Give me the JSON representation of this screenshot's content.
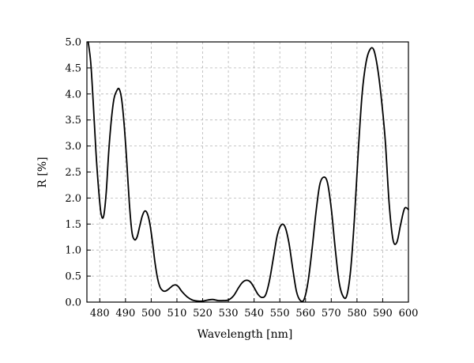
{
  "chart_data": {
    "type": "line",
    "xlabel": "Wavelength [nm]",
    "ylabel": "R [%]",
    "xlim": [
      475,
      600
    ],
    "ylim": [
      0,
      5.0
    ],
    "x_ticks": [
      480,
      490,
      500,
      510,
      520,
      530,
      540,
      550,
      560,
      570,
      580,
      590,
      600
    ],
    "x_tick_labels": [
      "480",
      "490",
      "500",
      "510",
      "520",
      "530",
      "540",
      "550",
      "560",
      "570",
      "580",
      "590",
      "600"
    ],
    "y_ticks": [
      0,
      0.5,
      1.0,
      1.5,
      2.0,
      2.5,
      3.0,
      3.5,
      4.0,
      4.5,
      5.0
    ],
    "y_tick_labels": [
      "0.0",
      "0.5",
      "1.0",
      "1.5",
      "2.0",
      "2.5",
      "3.0",
      "3.5",
      "4.0",
      "4.5",
      "5.0"
    ],
    "grid": true,
    "line_color": "#000000",
    "series": [
      {
        "x": [
          475.5,
          476.5,
          477.5,
          478.5,
          479.5,
          480.5,
          481.5,
          482.5,
          483.5,
          484.5,
          485.5,
          486.5,
          487.5,
          488.5,
          489.5,
          490.5,
          491.5,
          492.5,
          493.5,
          494.5,
          495.5,
          496.5,
          497.5,
          498.5,
          499.5,
          500.5,
          501.5,
          502.5,
          503.5,
          504.5,
          505.5,
          506.5,
          507.5,
          508.5,
          509.5,
          510.5,
          512,
          514,
          516,
          518,
          520,
          522,
          524,
          526,
          528,
          530,
          532,
          534,
          535.5,
          537,
          538.5,
          540,
          541.5,
          543,
          544.5,
          546,
          547.5,
          549,
          550.5,
          552,
          553.5,
          555,
          556.5,
          558,
          559.5,
          561,
          562.5,
          564,
          565.5,
          567,
          568.5,
          570,
          571.5,
          573,
          574.5,
          576,
          577.5,
          579,
          580.5,
          582,
          583.5,
          585,
          586.5,
          588,
          589.5,
          591,
          592.5,
          594,
          595.5,
          597,
          598.5,
          600
        ],
        "y": [
          5.0,
          4.6,
          3.8,
          2.9,
          2.2,
          1.7,
          1.65,
          2.1,
          2.9,
          3.5,
          3.9,
          4.05,
          4.1,
          3.9,
          3.4,
          2.7,
          1.9,
          1.35,
          1.2,
          1.25,
          1.45,
          1.65,
          1.75,
          1.7,
          1.5,
          1.15,
          0.75,
          0.45,
          0.28,
          0.22,
          0.21,
          0.24,
          0.28,
          0.32,
          0.33,
          0.3,
          0.2,
          0.1,
          0.04,
          0.02,
          0.02,
          0.04,
          0.05,
          0.03,
          0.03,
          0.04,
          0.12,
          0.28,
          0.38,
          0.42,
          0.39,
          0.28,
          0.15,
          0.09,
          0.14,
          0.42,
          0.85,
          1.28,
          1.48,
          1.45,
          1.15,
          0.65,
          0.2,
          0.03,
          0.06,
          0.4,
          1.0,
          1.7,
          2.25,
          2.4,
          2.3,
          1.8,
          1.05,
          0.4,
          0.12,
          0.12,
          0.6,
          1.6,
          2.9,
          4.0,
          4.6,
          4.85,
          4.85,
          4.5,
          3.9,
          3.1,
          1.9,
          1.2,
          1.15,
          1.5,
          1.8,
          1.78
        ]
      }
    ]
  }
}
